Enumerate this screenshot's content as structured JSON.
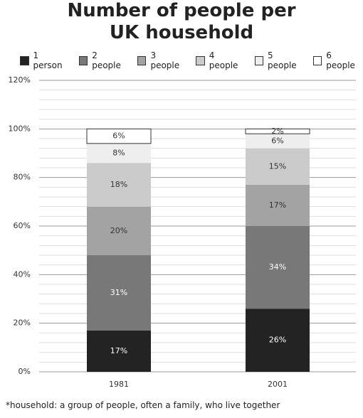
{
  "chart_data": {
    "type": "stacked-bar",
    "title": "Number of people per UK household",
    "categories": [
      "1981",
      "2001"
    ],
    "series": [
      {
        "name": "1 person",
        "color": "#232323",
        "values": [
          17,
          26
        ],
        "value_labels": [
          "17%",
          "26%"
        ]
      },
      {
        "name": "2 people",
        "color": "#787878",
        "values": [
          31,
          34
        ],
        "value_labels": [
          "31%",
          "34%"
        ]
      },
      {
        "name": "3 people",
        "color": "#a3a3a3",
        "values": [
          20,
          17
        ],
        "value_labels": [
          "20%",
          "17%"
        ]
      },
      {
        "name": "4 people",
        "color": "#cbcbcb",
        "values": [
          18,
          15
        ],
        "value_labels": [
          "18%",
          "15%"
        ]
      },
      {
        "name": "5 people",
        "color": "#eeeeee",
        "values": [
          8,
          6
        ],
        "value_labels": [
          "8%",
          "6%"
        ]
      },
      {
        "name": "6 people",
        "color": "#ffffff",
        "values": [
          6,
          2
        ],
        "value_labels": [
          "6%",
          "2%"
        ]
      }
    ],
    "ylim": [
      0,
      120
    ],
    "yticks": [
      {
        "value": 0,
        "label": "0%"
      },
      {
        "value": 20,
        "label": "20%"
      },
      {
        "value": 40,
        "label": "40%"
      },
      {
        "value": 60,
        "label": "60%"
      },
      {
        "value": 80,
        "label": "80%"
      },
      {
        "value": 100,
        "label": "100%"
      },
      {
        "value": 120,
        "label": "120%"
      }
    ],
    "minor_yticks": [
      4,
      8,
      12,
      16,
      24,
      28,
      32,
      36,
      44,
      48,
      52,
      56,
      64,
      68,
      72,
      76,
      84,
      88,
      92,
      96,
      104,
      108,
      112,
      116
    ],
    "grid": true,
    "legend": "top",
    "footnote": "*household: a group of people, often a family, who live together"
  }
}
